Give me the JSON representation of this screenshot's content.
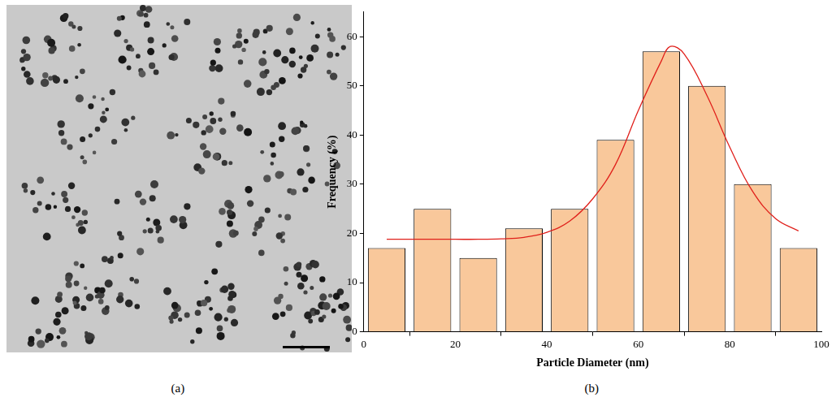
{
  "image_panel": {
    "label": "(a)"
  },
  "chart_data": {
    "label": "(b)",
    "type": "bar",
    "x_label": "Particle Diameter (nm)",
    "y_label": "Frequency (%)",
    "bins": [
      0,
      10,
      20,
      30,
      40,
      50,
      60,
      70,
      80,
      90,
      100
    ],
    "values": [
      17,
      25,
      15,
      21,
      25,
      39,
      57,
      50,
      30,
      17
    ],
    "color": "#f9c89b",
    "fit": {
      "type": "line",
      "color": "#e0201b",
      "x": [
        5,
        10,
        15,
        20,
        25,
        30,
        35,
        40,
        45,
        50,
        55,
        60,
        65,
        67,
        70,
        75,
        80,
        85,
        90,
        95
      ],
      "values": [
        18.8,
        18.8,
        18.8,
        18.8,
        18.8,
        18.9,
        19.2,
        20.2,
        22.5,
        27,
        34,
        45,
        55,
        58,
        56.5,
        48,
        37.5,
        28.5,
        23,
        20.5
      ]
    },
    "xlim": [
      0,
      100
    ],
    "xticks": [
      0,
      20,
      40,
      60,
      80,
      100
    ],
    "ylim": [
      0,
      65
    ],
    "yticks": [
      0,
      10,
      20,
      30,
      40,
      50,
      60
    ],
    "grid": false
  }
}
